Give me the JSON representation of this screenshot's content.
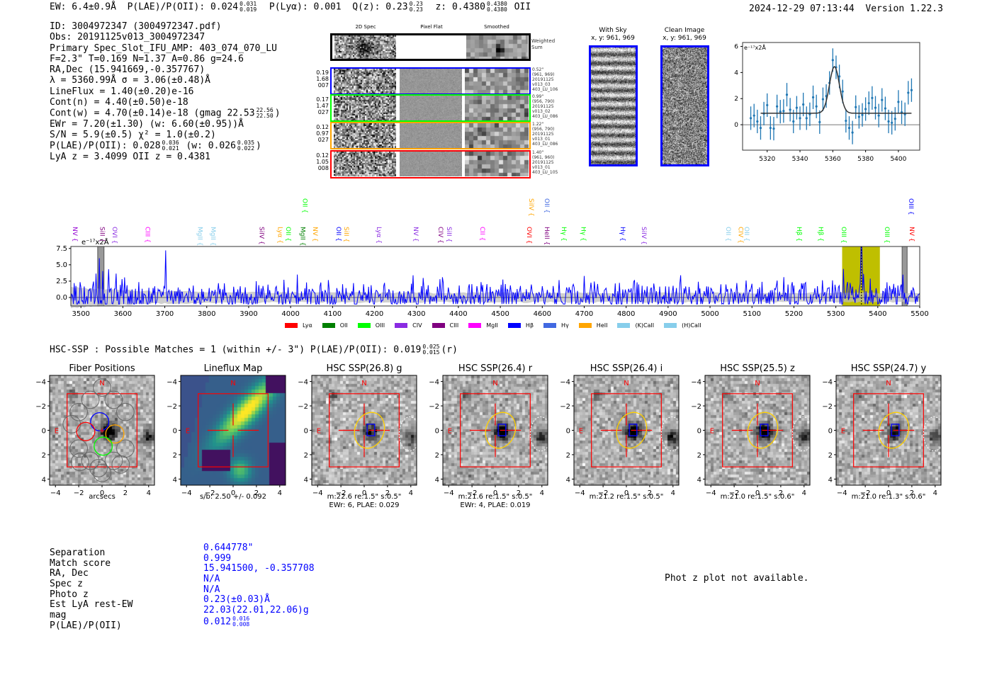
{
  "header": {
    "ew": "EW: 6.4±0.9Å",
    "plae_label": "P(LAE)/P(OII): 0.024",
    "plae_hi": "0.031",
    "plae_lo": "0.019",
    "plya": "P(Lyα): 0.001",
    "qz_label": "Q(z): 0.23",
    "qz_hi": "0.23",
    "qz_lo": "0.23",
    "z_label": "z: 0.4380",
    "z_hi": "0.4380",
    "z_lo": "0.4380",
    "z_line": "OII",
    "datetime": "2024-12-29 07:13:44",
    "version": "Version 1.22.3"
  },
  "info": {
    "id": "ID: 3004972347 (3004972347.pdf)",
    "obs": "Obs: 20191125v013_3004972347",
    "primary": "Primary Spec_Slot_IFU_AMP: 403_074_070_LU",
    "params": "F=2.3\"  T=0.169  N=1.37  A=0.86  g=24.6",
    "radec": "RA,Dec (15.941669,-0.357767)",
    "lambda": "λ = 5360.99Å   σ = 3.06(±0.48)Å",
    "lineflux": "LineFlux = 1.40(±0.20)e-16",
    "contn": "Cont(n) = 4.40(±0.50)e-18",
    "contw": "Cont(w) = 4.70(±0.14)e-18 (gmag 22.53",
    "contw_hi": "22.56",
    "contw_lo": "22.50",
    "contw_end": ")",
    "ewr": "EWr = 7.20(±1.30) (w: 6.60(±0.95))Å",
    "sn": "S/N = 5.9(±0.5)  χ² = 1.0(±0.2)",
    "plae": "P(LAE)/P(OII): 0.028",
    "plae_hi": "0.036",
    "plae_lo": "0.021",
    "plae_w": "(w: 0.026",
    "plae_w_hi": "0.035",
    "plae_w_lo": "0.022",
    "plae_w_end": ")",
    "zs": "LyA z = 3.4099   OII z = 0.4381"
  },
  "spec2d": {
    "headers": [
      "2D Spec",
      "Pixel Flat",
      "Smoothed"
    ],
    "weighted": "Weighted Sum",
    "rows": [
      {
        "color": "#0000ff",
        "left": [
          "0.19",
          "1.68",
          "007"
        ],
        "right": [
          "0.52\"",
          "(961, 969)",
          "20191125",
          "v013_03",
          "403_LU_106"
        ]
      },
      {
        "color": "#00ff00",
        "left": [
          "0.17",
          "1.47",
          "027"
        ],
        "right": [
          "0.99\"",
          "(956, 790)",
          "20191125",
          "v013_02",
          "403_LU_086"
        ]
      },
      {
        "color": "#ffa500",
        "left": [
          "0.12",
          "0.97",
          "027"
        ],
        "right": [
          "1.22\"",
          "(956, 790)",
          "20191125",
          "v013_01",
          "403_LU_086"
        ]
      },
      {
        "color": "#ff0000",
        "left": [
          "0.12",
          "1.05",
          "008"
        ],
        "right": [
          "1.40\"",
          "(961, 960)",
          "20191125",
          "v013_01",
          "403_LU_105"
        ]
      }
    ]
  },
  "ccd": {
    "with_sky": "With Sky",
    "with_sky_xy": "x, y: 961, 969",
    "clean": "Clean Image",
    "clean_xy": "x, y: 961, 969"
  },
  "chart_data": [
    {
      "type": "scatter",
      "title": "",
      "units": "e⁻¹⁷x2Å",
      "xlim": [
        5305,
        5413
      ],
      "ylim": [
        -1.95,
        6.3
      ],
      "xticks": [
        5320,
        5340,
        5360,
        5380,
        5400
      ],
      "yticks": [
        0,
        2,
        4,
        6
      ],
      "x": [
        5310,
        5312,
        5314,
        5316,
        5318,
        5320,
        5322,
        5324,
        5326,
        5328,
        5330,
        5332,
        5334,
        5336,
        5338,
        5340,
        5342,
        5344,
        5346,
        5348,
        5350,
        5352,
        5354,
        5356,
        5358,
        5360,
        5362,
        5364,
        5366,
        5368,
        5370,
        5372,
        5374,
        5376,
        5378,
        5380,
        5382,
        5384,
        5386,
        5388,
        5390,
        5392,
        5394,
        5396,
        5398,
        5400,
        5402,
        5404,
        5406,
        5408
      ],
      "y": [
        0.5,
        0.7,
        0.25,
        -0.25,
        0.85,
        1.5,
        -0.25,
        -0.3,
        1.4,
        1.0,
        1.05,
        2.3,
        1.15,
        0.25,
        1.3,
        0.5,
        1.55,
        0.5,
        0.8,
        2.1,
        1.4,
        0.2,
        1.95,
        2.2,
        3.2,
        4.95,
        4.4,
        3.7,
        2.55,
        0.3,
        -0.25,
        -0.6,
        1.35,
        0.6,
        0.75,
        1.2,
        1.65,
        2.05,
        1.3,
        0.7,
        1.9,
        1.25,
        0.25,
        0.15,
        0.45,
        1.75,
        0.95,
        0.8,
        2.45,
        2.65
      ],
      "yerr": 0.9,
      "fit": {
        "continuum": 0.88,
        "amplitude": 3.57,
        "center": 5361,
        "sigma": 3.06,
        "xrange": [
          5316,
          5408
        ]
      }
    },
    {
      "type": "line",
      "title": "",
      "units": "e⁻¹⁷x2Å",
      "xlim": [
        3476,
        5500
      ],
      "ylim": [
        -1.3,
        7.8
      ],
      "xticks": [
        3500,
        3600,
        3700,
        3800,
        3900,
        4000,
        4100,
        4200,
        4300,
        4400,
        4500,
        4600,
        4700,
        4800,
        4900,
        5000,
        5100,
        5200,
        5300,
        5400,
        5500
      ],
      "yticks": [
        0.0,
        2.5,
        5.0,
        7.5
      ],
      "ytick_labels": [
        "0.0",
        "2.5",
        "5.0",
        "7.5"
      ],
      "line_center": 5361,
      "highlight_band": [
        5315,
        5405
      ],
      "masked": [
        [
          3540,
          3555
        ],
        [
          5458,
          5470
        ]
      ],
      "noise_sigma": 1.3,
      "spikes": [
        {
          "x": 3544,
          "y": 6.0
        },
        {
          "x": 3702,
          "y": 7.2
        },
        {
          "x": 5361,
          "y": 4.8
        }
      ],
      "legend": [
        {
          "name": "Lyα",
          "color": "#ff0000"
        },
        {
          "name": "OII",
          "color": "#008000"
        },
        {
          "name": "OIII",
          "color": "#00ff00"
        },
        {
          "name": "CIV",
          "color": "#8a2be2"
        },
        {
          "name": "CIII",
          "color": "#800080"
        },
        {
          "name": "MgII",
          "color": "#ff00ff"
        },
        {
          "name": "Hβ",
          "color": "#0000ff"
        },
        {
          "name": "Hγ",
          "color": "#4169e1"
        },
        {
          "name": "HeII",
          "color": "#ffa500"
        },
        {
          "name": "(K)CaII",
          "color": "#87ceeb"
        },
        {
          "name": "(H)CaII",
          "color": "#87ceeb"
        }
      ],
      "lines": [
        {
          "w": 3486,
          "n": "NV",
          "c": "#9400d3",
          "r": 0
        },
        {
          "w": 3551,
          "n": "SiII",
          "c": "#800080",
          "r": 0
        },
        {
          "w": 3581,
          "n": "OVI",
          "c": "#8a2be2",
          "r": 0
        },
        {
          "w": 3659,
          "n": "CIII",
          "c": "#ff00ff",
          "r": 0
        },
        {
          "w": 3784,
          "n": "MgII",
          "c": "#87ceeb",
          "r": 0
        },
        {
          "w": 3816,
          "n": "MgII",
          "c": "#87ceeb",
          "r": 0
        },
        {
          "w": 3931,
          "n": "SiIV",
          "c": "#800080",
          "r": 0
        },
        {
          "w": 3975,
          "n": "Lyα",
          "c": "#ffa500",
          "r": 0
        },
        {
          "w": 3995,
          "n": "OII",
          "c": "#00ff00",
          "r": 0
        },
        {
          "w": 4029,
          "n": "MgII",
          "c": "#008000",
          "r": 0
        },
        {
          "w": 4059,
          "n": "NV",
          "c": "#ffa500",
          "r": 0
        },
        {
          "w": 4115,
          "n": "OII",
          "c": "#0000ff",
          "r": 0
        },
        {
          "w": 4133,
          "n": "SiII",
          "c": "#ffa500",
          "r": 0
        },
        {
          "w": 4211,
          "n": "Lyα",
          "c": "#8a2be2",
          "r": 0
        },
        {
          "w": 4299,
          "n": "NV",
          "c": "#8a2be2",
          "r": 0
        },
        {
          "w": 4358,
          "n": "CIV",
          "c": "#800080",
          "r": 0
        },
        {
          "w": 4378,
          "n": "SiII",
          "c": "#8a2be2",
          "r": 0
        },
        {
          "w": 4458,
          "n": "CII",
          "c": "#ff00ff",
          "r": 0
        },
        {
          "w": 4569,
          "n": "OVI",
          "c": "#ff0000",
          "r": 0
        },
        {
          "w": 4611,
          "n": "HeII",
          "c": "#800080",
          "r": 0
        },
        {
          "w": 4652,
          "n": "Hγ",
          "c": "#00ff00",
          "r": 0
        },
        {
          "w": 4698,
          "n": "Hγ",
          "c": "#00ff00",
          "r": 0
        },
        {
          "w": 4792,
          "n": "Hγ",
          "c": "#0000ff",
          "r": 0
        },
        {
          "w": 4843,
          "n": "SiIV",
          "c": "#8a2be2",
          "r": 0
        },
        {
          "w": 5044,
          "n": "OII",
          "c": "#87ceeb",
          "r": 0
        },
        {
          "w": 5073,
          "n": "CIV",
          "c": "#ffa500",
          "r": 0
        },
        {
          "w": 5088,
          "n": "OII",
          "c": "#87ceeb",
          "r": 0
        },
        {
          "w": 5213,
          "n": "Hβ",
          "c": "#00ff00",
          "r": 0
        },
        {
          "w": 5264,
          "n": "Hβ",
          "c": "#00ff00",
          "r": 0
        },
        {
          "w": 5319,
          "n": "OIII",
          "c": "#00ff00",
          "r": 0
        },
        {
          "w": 5422,
          "n": "OIII",
          "c": "#00ff00",
          "r": 0
        },
        {
          "w": 5481,
          "n": "NV",
          "c": "#ff0000",
          "r": 0
        },
        {
          "w": 4034,
          "n": "OII",
          "c": "#00ff00",
          "r": 1
        },
        {
          "w": 4574,
          "n": "SiIV",
          "c": "#ffa500",
          "r": 1
        },
        {
          "w": 4611,
          "n": "OII",
          "c": "#4169e1",
          "r": 1
        },
        {
          "w": 5480,
          "n": "OIII",
          "c": "#0000ff",
          "r": 1
        }
      ]
    }
  ],
  "hsc": {
    "title": "HSC-SSP : Possible Matches = 1 (within +/- 3\")  P(LAE)/P(OII): 0.019",
    "hi": "0.025",
    "lo": "0.015",
    "end": "(r)"
  },
  "cutouts": [
    {
      "title": "Fiber Positions",
      "cap1": "arcsecs",
      "cap2": "",
      "kind": "fiber",
      "n": "N",
      "e": "E"
    },
    {
      "title": "Lineflux Map",
      "cap1": "s/b: 2.50 +/- 0.092",
      "cap2": "",
      "kind": "flux",
      "n": "N",
      "e": "E"
    },
    {
      "title": "HSC SSP(26.8) g",
      "cap1": "m:22.6  re:1.5\"  s:0.5\"",
      "cap2": "EWr: 6, PLAE: 0.029",
      "kind": "img",
      "n": "N",
      "e": "E",
      "strength": 0.7
    },
    {
      "title": "HSC SSP(26.4) r",
      "cap1": "m:21.6  re:1.5\"  s:0.5\"",
      "cap2": "EWr: 4, PLAE: 0.019",
      "kind": "img",
      "n": "N",
      "e": "E",
      "strength": 1.0
    },
    {
      "title": "HSC SSP(26.4) i",
      "cap1": "m:21.2  re:1.5\"  s:0.5\"",
      "cap2": "",
      "kind": "img",
      "n": "N",
      "e": "E",
      "strength": 1.0
    },
    {
      "title": "HSC SSP(25.5) z",
      "cap1": "m:21.0  re:1.5\"  s:0.6\"",
      "cap2": "",
      "kind": "img",
      "n": "N",
      "e": "E",
      "strength": 0.95
    },
    {
      "title": "HSC SSP(24.7) y",
      "cap1": "m:21.0  re:1.3\"  s:0.6\"",
      "cap2": "",
      "kind": "img",
      "n": "N",
      "e": "E",
      "strength": 0.75
    }
  ],
  "cutout_ticks": [
    "−4",
    "−2",
    "0",
    "2",
    "4"
  ],
  "match": {
    "labels": [
      "Separation",
      "Match score",
      "RA, Dec",
      "Spec z",
      "Photo z",
      "Est LyA rest-EW",
      "mag",
      "P(LAE)/P(OII)"
    ],
    "values": [
      "0.644778\"",
      "0.999",
      "15.941500, -0.357708",
      "N/A",
      "N/A",
      "0.23(±0.03)Å",
      "22.03(22.01,22.06)g",
      "0.012"
    ],
    "plae_hi": "0.016",
    "plae_lo": "0.008"
  },
  "photz_msg": "Phot z plot not available."
}
